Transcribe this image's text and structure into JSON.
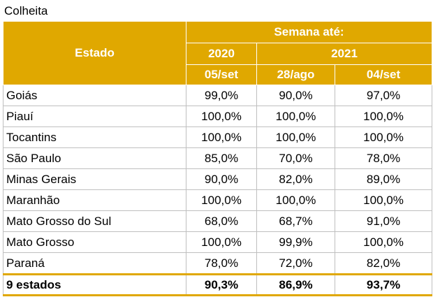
{
  "caption": "Colheita",
  "header": {
    "estado": "Estado",
    "semana": "Semana até:",
    "year_2020": "2020",
    "year_2021": "2021",
    "col1": "05/set",
    "col2": "28/ago",
    "col3": "04/set"
  },
  "rows": [
    {
      "estado": "Goiás",
      "v1": "99,0%",
      "v2": "90,0%",
      "v3": "97,0%"
    },
    {
      "estado": "Piauí",
      "v1": "100,0%",
      "v2": "100,0%",
      "v3": "100,0%"
    },
    {
      "estado": "Tocantins",
      "v1": "100,0%",
      "v2": "100,0%",
      "v3": "100,0%"
    },
    {
      "estado": "São Paulo",
      "v1": "85,0%",
      "v2": "70,0%",
      "v3": "78,0%"
    },
    {
      "estado": "Minas Gerais",
      "v1": "90,0%",
      "v2": "82,0%",
      "v3": "89,0%"
    },
    {
      "estado": "Maranhão",
      "v1": "100,0%",
      "v2": "100,0%",
      "v3": "100,0%"
    },
    {
      "estado": "Mato Grosso do Sul",
      "v1": "68,0%",
      "v2": "68,7%",
      "v3": "91,0%"
    },
    {
      "estado": "Mato Grosso",
      "v1": "100,0%",
      "v2": "99,9%",
      "v3": "100,0%"
    },
    {
      "estado": "Paraná",
      "v1": "78,0%",
      "v2": "72,0%",
      "v3": "82,0%"
    }
  ],
  "total": {
    "estado": "9 estados",
    "v1": "90,3%",
    "v2": "86,9%",
    "v3": "93,7%"
  },
  "colors": {
    "header_bg": "#e0a800",
    "header_text": "#ffffff"
  }
}
